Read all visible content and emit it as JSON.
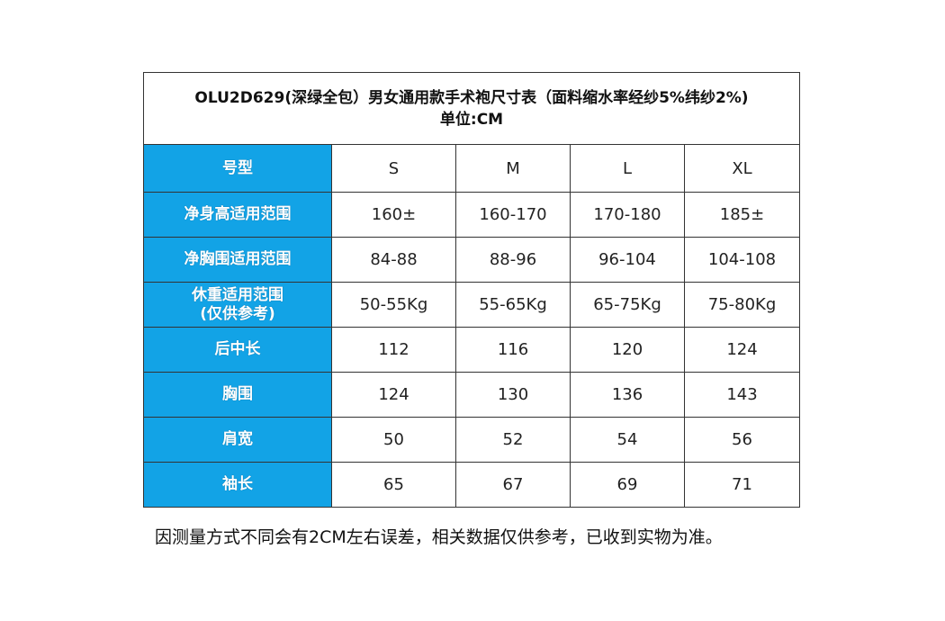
{
  "title": {
    "line1": "OLU2D629(深绿全包）男女通用款手术袍尺寸表（面料缩水率经纱5%纬纱2%)",
    "line2": "单位:CM"
  },
  "header": {
    "label": "号型",
    "sizes": [
      "S",
      "M",
      "L",
      "XL"
    ]
  },
  "rows": [
    {
      "label": "净身高适用范围",
      "values": [
        "160±",
        "160-170",
        "170-180",
        "185±"
      ]
    },
    {
      "label": "净胸围适用范围",
      "values": [
        "84-88",
        "88-96",
        "96-104",
        "104-108"
      ]
    },
    {
      "label": "休重适用范围",
      "label2": "(仅供参考)",
      "values": [
        "50-55Kg",
        "55-65Kg",
        "65-75Kg",
        "75-80Kg"
      ]
    },
    {
      "label": "后中长",
      "values": [
        "112",
        "116",
        "120",
        "124"
      ]
    },
    {
      "label": "胸围",
      "values": [
        "124",
        "130",
        "136",
        "143"
      ]
    },
    {
      "label": "肩宽",
      "values": [
        "50",
        "52",
        "54",
        "56"
      ]
    },
    {
      "label": "袖长",
      "values": [
        "65",
        "67",
        "69",
        "71"
      ]
    }
  ],
  "colors": {
    "label_background": "#12a3e6",
    "label_text": "#ffffff",
    "border": "#333333"
  },
  "note": "因测量方式不同会有2CM左右误差，相关数据仅供参考，已收到实物为准。"
}
